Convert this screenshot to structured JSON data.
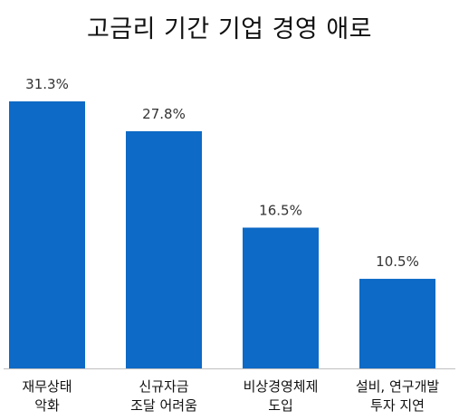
{
  "chart_data": {
    "type": "bar",
    "title": "고금리 기간 기업 경영 애로",
    "categories": [
      [
        "재무상태",
        "악화"
      ],
      [
        "신규자금",
        "조달 어려움"
      ],
      [
        "비상경영체제",
        "도입"
      ],
      [
        "설비, 연구개발",
        "투자 지연"
      ]
    ],
    "values": [
      31.3,
      27.8,
      16.5,
      10.5
    ],
    "value_labels": [
      "31.3%",
      "27.8%",
      "16.5%",
      "10.5%"
    ],
    "ylim": [
      0,
      31.3
    ],
    "grid": false,
    "legend": false,
    "bar_color": "#0d6ac6",
    "axis_color": "#bfbfbf"
  }
}
